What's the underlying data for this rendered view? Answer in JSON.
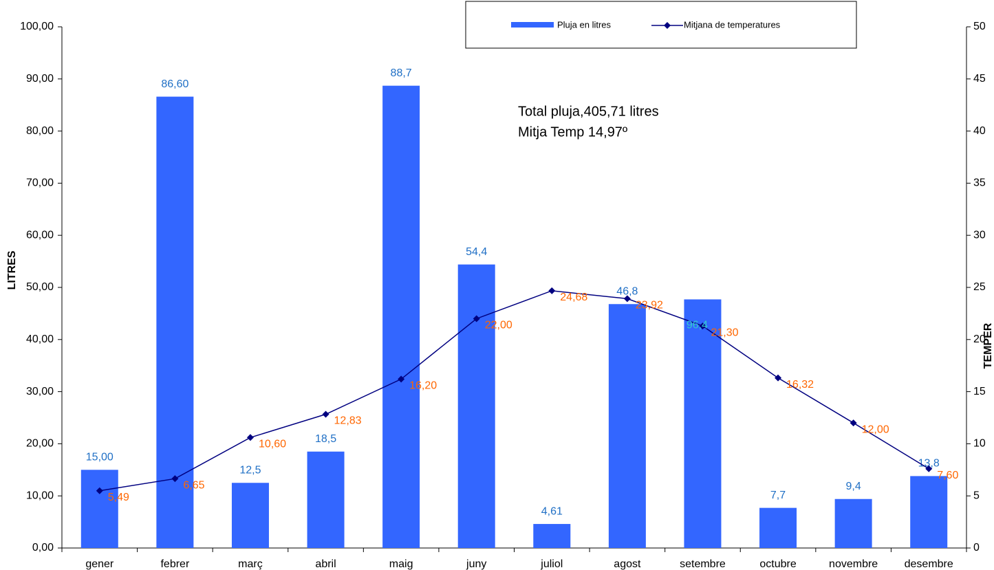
{
  "chart_data": {
    "type": "bar-line",
    "categories": [
      "gener",
      "febrer",
      "març",
      "abril",
      "maig",
      "juny",
      "juliol",
      "agost",
      "setembre",
      "octubre",
      "novembre",
      "desembre"
    ],
    "series": [
      {
        "name": "Pluja en litres",
        "type": "bar",
        "color": "#3366ff",
        "label_color": "#1f6fc5",
        "values": [
          15.0,
          86.6,
          12.5,
          18.5,
          88.7,
          54.4,
          4.61,
          46.8,
          47.7,
          7.7,
          9.4,
          13.8
        ],
        "value_labels": [
          "15,00",
          "86,60",
          "12,5",
          "18,5",
          "88,7",
          "54,4",
          "4,61",
          "46,8",
          null,
          "7,7",
          "9,4",
          "13,8"
        ]
      },
      {
        "name": "Mitjana de temperatures",
        "type": "line",
        "axis": "y2",
        "color": "#000080",
        "label_color": "#ff6600",
        "values": [
          5.49,
          6.65,
          10.6,
          12.83,
          16.2,
          22.0,
          24.68,
          23.92,
          21.3,
          16.32,
          12.0,
          7.6
        ],
        "value_labels": [
          "5,49",
          "6,65",
          "10,60",
          "12,83",
          "16,20",
          "22,00",
          "24,68",
          "23,92",
          "21,30",
          "16,32",
          "12,00",
          "7,60"
        ]
      }
    ],
    "ylabel": "LITRES",
    "y2label": "TEMPER",
    "ylim": [
      0,
      100
    ],
    "yticks": [
      {
        "value": 0,
        "label": "0,00"
      },
      {
        "value": 10,
        "label": "10,00"
      },
      {
        "value": 20,
        "label": "20,00"
      },
      {
        "value": 30,
        "label": "30,00"
      },
      {
        "value": 40,
        "label": "40,00"
      },
      {
        "value": 50,
        "label": "50,00"
      },
      {
        "value": 60,
        "label": "60,00"
      },
      {
        "value": 70,
        "label": "70,00"
      },
      {
        "value": 80,
        "label": "80,00"
      },
      {
        "value": 90,
        "label": "90,00"
      },
      {
        "value": 100,
        "label": "100,00"
      }
    ],
    "y2lim": [
      0,
      50
    ],
    "y2ticks": [
      0,
      5,
      10,
      15,
      20,
      25,
      30,
      35,
      40,
      45,
      50
    ],
    "annotations": [
      "Total  pluja,405,71 litres",
      "Mitja Temp  14,97º"
    ],
    "stray_label": {
      "text": "96,4",
      "category": 8,
      "color": "#33cccc"
    },
    "legend": "top",
    "grid": false
  }
}
